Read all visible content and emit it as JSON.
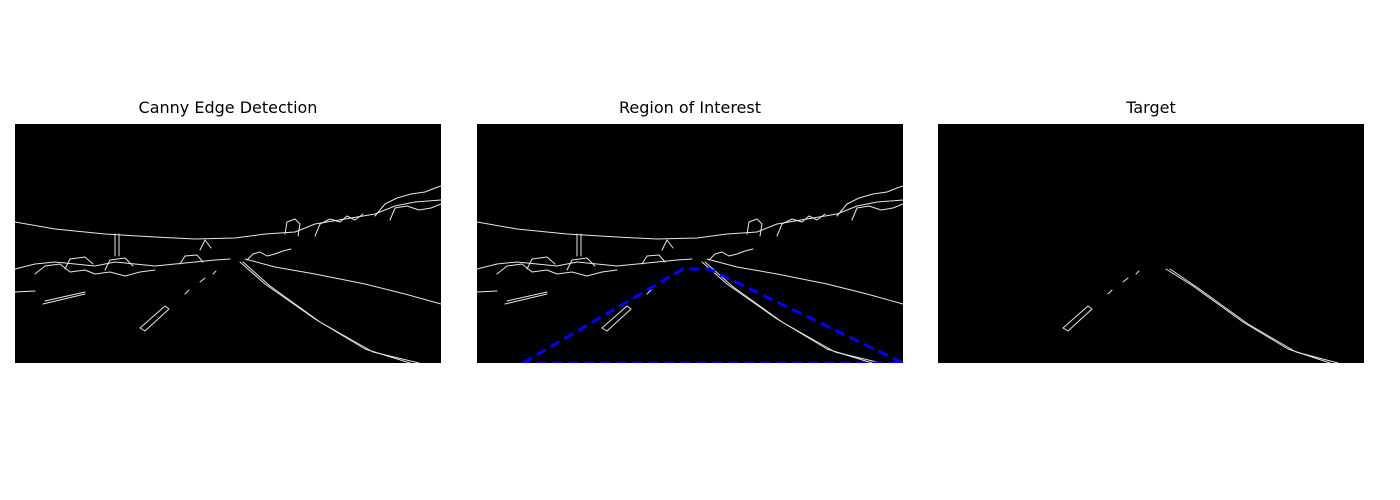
{
  "panels": [
    {
      "title": "Canny Edge Detection"
    },
    {
      "title": "Region of Interest"
    },
    {
      "title": "Target"
    }
  ],
  "colors": {
    "background": "#000000",
    "edges": "#e6e6e6",
    "roi": "#0000ff"
  }
}
